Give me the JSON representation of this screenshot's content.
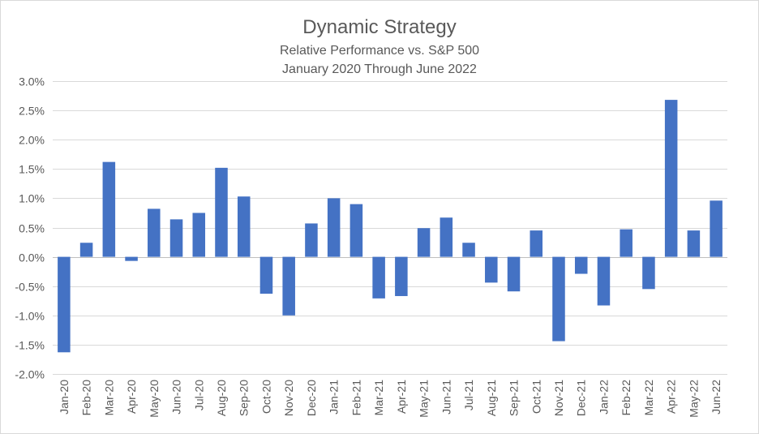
{
  "chart_data": {
    "type": "bar",
    "title": "Dynamic Strategy",
    "subtitle_lines": [
      "Relative Performance vs. S&P 500",
      "January 2020 Through June 2022"
    ],
    "xlabel": "",
    "ylabel": "",
    "ylim": [
      -2.0,
      3.0
    ],
    "y_tick_step": 0.5,
    "y_tick_format": "percent_1dp",
    "grid": true,
    "bar_color": "#4472c4",
    "categories": [
      "Jan-20",
      "Feb-20",
      "Mar-20",
      "Apr-20",
      "May-20",
      "Jun-20",
      "Jul-20",
      "Aug-20",
      "Sep-20",
      "Oct-20",
      "Nov-20",
      "Dec-20",
      "Jan-21",
      "Feb-21",
      "Mar-21",
      "Apr-21",
      "May-21",
      "Jun-21",
      "Jul-21",
      "Aug-21",
      "Sep-21",
      "Oct-21",
      "Nov-21",
      "Dec-21",
      "Jan-22",
      "Feb-22",
      "Mar-22",
      "Apr-22",
      "May-22",
      "Jun-22"
    ],
    "values": [
      -1.63,
      0.24,
      1.62,
      -0.07,
      0.82,
      0.64,
      0.75,
      1.52,
      1.03,
      -0.63,
      -1.0,
      0.57,
      1.0,
      0.9,
      -0.71,
      -0.67,
      0.49,
      0.67,
      0.24,
      -0.44,
      -0.59,
      0.45,
      -1.44,
      -0.29,
      -0.83,
      0.47,
      -0.55,
      2.68,
      0.45,
      0.96
    ]
  }
}
